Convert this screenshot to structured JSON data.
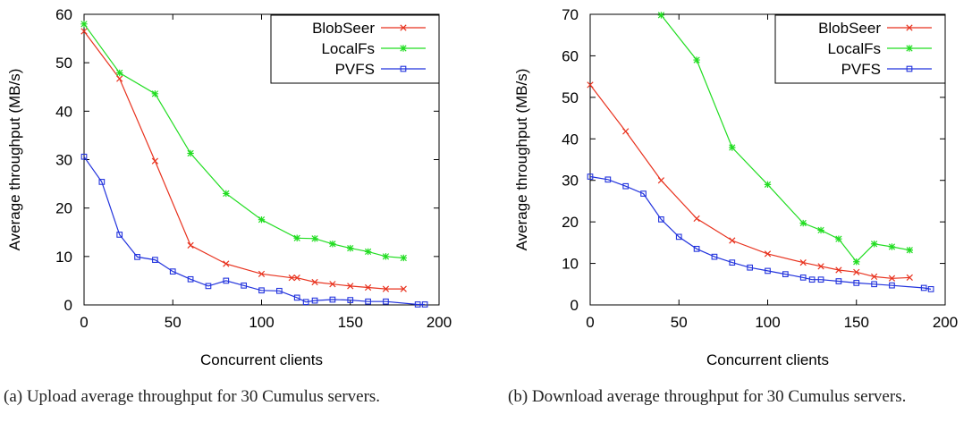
{
  "chart_data": [
    {
      "type": "line",
      "caption": "(a) Upload average throughput for 30 Cumulus servers.",
      "xlabel": "Concurrent clients",
      "ylabel": "Average throughput (MB/s)",
      "xlim": [
        0,
        200
      ],
      "ylim": [
        0,
        60
      ],
      "xticks": [
        "0",
        "50",
        "100",
        "150",
        "200"
      ],
      "yticks": [
        "0",
        "10",
        "20",
        "30",
        "40",
        "50",
        "60"
      ],
      "xtick_values": [
        0,
        50,
        100,
        150,
        200
      ],
      "ytick_values": [
        0,
        10,
        20,
        30,
        40,
        50,
        60
      ],
      "grid": false,
      "legend_position": "top-right",
      "series": [
        {
          "name": "BlobSeer",
          "color": "#e8321e",
          "marker": "x",
          "x": [
            0,
            20,
            40,
            60,
            80,
            100,
            117,
            120,
            130,
            140,
            150,
            160,
            170,
            180
          ],
          "y": [
            56.5,
            46.7,
            29.7,
            12.3,
            8.5,
            6.4,
            5.6,
            5.6,
            4.7,
            4.3,
            3.9,
            3.6,
            3.3,
            3.3
          ]
        },
        {
          "name": "LocalFs",
          "color": "#22dd22",
          "marker": "star",
          "x": [
            0,
            20,
            40,
            60,
            80,
            100,
            120,
            130,
            140,
            150,
            160,
            170,
            180
          ],
          "y": [
            58.0,
            47.9,
            43.6,
            31.3,
            23.0,
            17.6,
            13.8,
            13.7,
            12.6,
            11.7,
            11.0,
            10.0,
            9.7
          ]
        },
        {
          "name": "PVFS",
          "color": "#2233dd",
          "marker": "square",
          "x": [
            0,
            10,
            20,
            30,
            40,
            50,
            60,
            70,
            80,
            90,
            100,
            110,
            120,
            125,
            130,
            140,
            150,
            160,
            170,
            188,
            192
          ],
          "y": [
            30.6,
            25.4,
            14.5,
            9.9,
            9.3,
            6.9,
            5.3,
            3.9,
            5.0,
            4.0,
            3.0,
            2.9,
            1.5,
            0.6,
            0.9,
            1.1,
            1.0,
            0.7,
            0.7,
            0.1,
            0.1
          ]
        }
      ]
    },
    {
      "type": "line",
      "caption": "(b) Download average throughput for 30 Cumulus servers.",
      "xlabel": "Concurrent clients",
      "ylabel": "Average throughput (MB/s)",
      "xlim": [
        0,
        200
      ],
      "ylim": [
        0,
        70
      ],
      "xticks": [
        "0",
        "50",
        "100",
        "150",
        "200"
      ],
      "yticks": [
        "0",
        "10",
        "20",
        "30",
        "40",
        "50",
        "60",
        "70"
      ],
      "xtick_values": [
        0,
        50,
        100,
        150,
        200
      ],
      "ytick_values": [
        0,
        10,
        20,
        30,
        40,
        50,
        60,
        70
      ],
      "grid": false,
      "legend_position": "top-right",
      "series": [
        {
          "name": "BlobSeer",
          "color": "#e8321e",
          "marker": "x",
          "x": [
            0,
            20,
            40,
            60,
            80,
            100,
            120,
            130,
            140,
            150,
            160,
            170,
            180
          ],
          "y": [
            53.0,
            41.8,
            30.0,
            20.8,
            15.5,
            12.3,
            10.2,
            9.3,
            8.4,
            7.9,
            6.8,
            6.4,
            6.6
          ]
        },
        {
          "name": "LocalFs",
          "color": "#22dd22",
          "marker": "star",
          "x": [
            40,
            60,
            80,
            100,
            120,
            130,
            140,
            150,
            160,
            170,
            180
          ],
          "y": [
            69.8,
            59.0,
            37.9,
            29.0,
            19.7,
            18.0,
            15.9,
            10.4,
            14.7,
            14.0,
            13.2
          ]
        },
        {
          "name": "PVFS",
          "color": "#2233dd",
          "marker": "square",
          "x": [
            0,
            10,
            20,
            30,
            40,
            50,
            60,
            70,
            80,
            90,
            100,
            110,
            120,
            125,
            130,
            140,
            150,
            160,
            170,
            188,
            192
          ],
          "y": [
            30.9,
            30.2,
            28.6,
            26.8,
            20.6,
            16.4,
            13.5,
            11.6,
            10.2,
            9.0,
            8.2,
            7.4,
            6.6,
            6.1,
            6.1,
            5.7,
            5.3,
            5.0,
            4.7,
            4.1,
            3.8
          ]
        }
      ]
    }
  ]
}
